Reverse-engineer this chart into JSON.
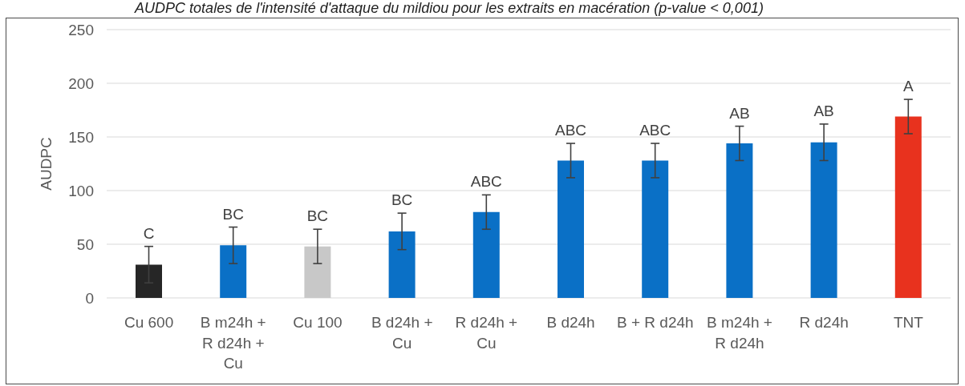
{
  "chart_data": {
    "type": "bar",
    "title": "AUDPC totales de l'intensité d'attaque du mildiou pour les extraits en macération (p-value < 0,001)",
    "ylabel": "AUDPC",
    "categories": [
      "Cu 600",
      "B m24h + R d24h + Cu",
      "Cu 100",
      "B d24h + Cu",
      "R d24h + Cu",
      "B d24h",
      "B + R d24h",
      "B m24h + R d24h",
      "R d24h",
      "TNT"
    ],
    "values": [
      31,
      49,
      48,
      62,
      80,
      128,
      128,
      144,
      145,
      169
    ],
    "errors": [
      17,
      17,
      16,
      17,
      16,
      16,
      16,
      16,
      17,
      16
    ],
    "colors": [
      "#262626",
      "#0a70c6",
      "#c8c8c8",
      "#0a70c6",
      "#0a70c6",
      "#0a70c6",
      "#0a70c6",
      "#0a70c6",
      "#0a70c6",
      "#e8321e"
    ],
    "value_labels": [
      "C",
      "BC",
      "BC",
      "BC",
      "ABC",
      "ABC",
      "ABC",
      "AB",
      "AB",
      "A"
    ],
    "ylim": [
      0,
      250
    ],
    "yticks": [
      0,
      50,
      100,
      150,
      200,
      250
    ],
    "grid": "y"
  }
}
